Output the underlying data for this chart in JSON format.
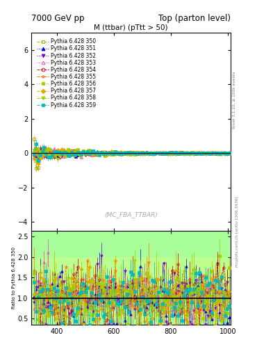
{
  "title_left": "7000 GeV pp",
  "title_right": "Top (parton level)",
  "plot_title": "M (ttbar) (pTtt > 50)",
  "watermark": "(MC_FBA_TTBAR)",
  "ylabel_ratio": "Ratio to Pythia 6.428 350",
  "right_label_main": "Rivet 3.1.10, ≥ 100k events",
  "right_label_ratio": "mcplots.cern.ch [arXiv:1306.3436]",
  "xlim": [
    310,
    1010
  ],
  "ylim_main": [
    -4.5,
    7.0
  ],
  "ylim_ratio": [
    0.35,
    2.65
  ],
  "yticks_main": [
    -4,
    -2,
    0,
    2,
    4,
    6
  ],
  "yticks_ratio": [
    0.5,
    1.0,
    1.5,
    2.0,
    2.5
  ],
  "xticks": [
    400,
    600,
    800,
    1000
  ],
  "series": [
    {
      "label": "Pythia 6.428 350",
      "color": "#aaaa00",
      "marker": "s",
      "linestyle": "--",
      "filled": false,
      "msize": 3
    },
    {
      "label": "Pythia 6.428 351",
      "color": "#0000dd",
      "marker": "^",
      "linestyle": ":",
      "filled": true,
      "msize": 3
    },
    {
      "label": "Pythia 6.428 352",
      "color": "#7700cc",
      "marker": "v",
      "linestyle": ":",
      "filled": true,
      "msize": 3
    },
    {
      "label": "Pythia 6.428 353",
      "color": "#ee44aa",
      "marker": "^",
      "linestyle": ":",
      "filled": false,
      "msize": 3
    },
    {
      "label": "Pythia 6.428 354",
      "color": "#cc0000",
      "marker": "o",
      "linestyle": "--",
      "filled": false,
      "msize": 3
    },
    {
      "label": "Pythia 6.428 355",
      "color": "#ff7700",
      "marker": "*",
      "linestyle": "--",
      "filled": false,
      "msize": 4
    },
    {
      "label": "Pythia 6.428 356",
      "color": "#aacc00",
      "marker": "s",
      "linestyle": ":",
      "filled": true,
      "msize": 3
    },
    {
      "label": "Pythia 6.428 357",
      "color": "#ddaa00",
      "marker": "D",
      "linestyle": "--",
      "filled": true,
      "msize": 3
    },
    {
      "label": "Pythia 6.428 358",
      "color": "#99cc00",
      "marker": "v",
      "linestyle": "--",
      "filled": true,
      "msize": 3
    },
    {
      "label": "Pythia 6.428 359",
      "color": "#00bbbb",
      "marker": "s",
      "linestyle": "--",
      "filled": true,
      "msize": 3
    }
  ],
  "n_bins": 100,
  "x_start": 320,
  "x_end": 1005,
  "bg_color": "#ffffff"
}
